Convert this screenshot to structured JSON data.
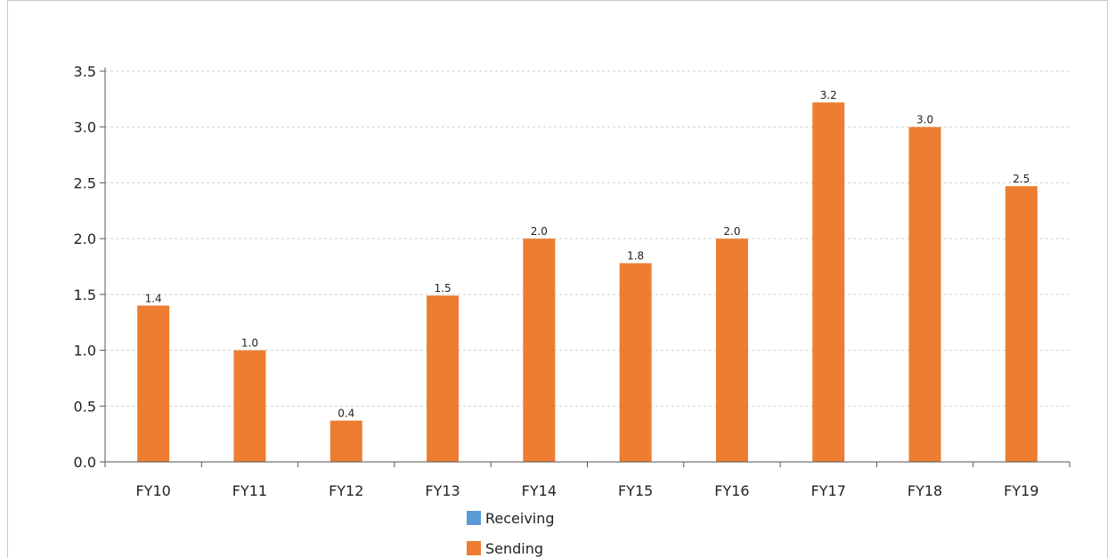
{
  "chart_data": {
    "type": "bar",
    "categories": [
      "FY10",
      "FY11",
      "FY12",
      "FY13",
      "FY14",
      "FY15",
      "FY16",
      "FY17",
      "FY18",
      "FY19"
    ],
    "series": [
      {
        "name": "Receiving",
        "color": "#5b9bd5",
        "values": [
          0,
          0,
          0,
          0,
          0,
          0,
          0,
          0,
          0,
          0
        ]
      },
      {
        "name": "Sending",
        "color": "#ed7d31",
        "values": [
          1.4,
          1.0,
          0.37,
          1.49,
          2.0,
          1.78,
          2.0,
          3.22,
          3.0,
          2.47
        ]
      }
    ],
    "data_labels": [
      "1.4",
      "1.0",
      "0.4",
      "1.5",
      "2.0",
      "1.8",
      "2.0",
      "3.2",
      "3.0",
      "2.5"
    ],
    "y_ticks": [
      "0.0",
      "0.5",
      "1.0",
      "1.5",
      "2.0",
      "2.5",
      "3.0",
      "3.5"
    ],
    "ylim": [
      0,
      3.5
    ],
    "grid": true,
    "legend_position": "bottom-center",
    "title": "",
    "xlabel": "",
    "ylabel": ""
  }
}
